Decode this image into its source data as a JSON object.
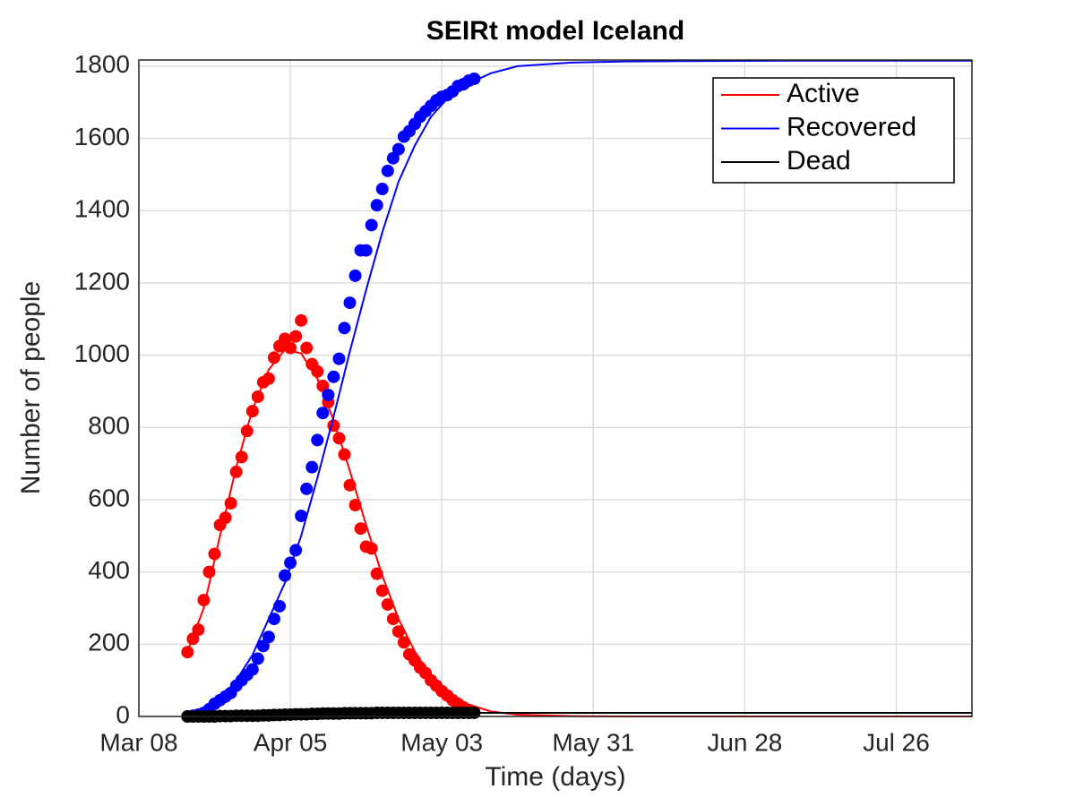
{
  "chart_data": {
    "type": "line",
    "title": "SEIRt model Iceland",
    "xlabel": "Time (days)",
    "ylabel": "Number of people",
    "xlim": [
      0,
      154
    ],
    "xticks": [
      {
        "value": 0,
        "label": "Mar 08"
      },
      {
        "value": 28,
        "label": "Apr 05"
      },
      {
        "value": 56,
        "label": "May 03"
      },
      {
        "value": 84,
        "label": "May 31"
      },
      {
        "value": 112,
        "label": "Jun 28"
      },
      {
        "value": 140,
        "label": "Jul 26"
      }
    ],
    "ylim": [
      0,
      1817
    ],
    "yticks": [
      0,
      200,
      400,
      600,
      800,
      1000,
      1200,
      1400,
      1600,
      1800
    ],
    "grid": true,
    "legend": "upper right",
    "observed_x": [
      9,
      10,
      11,
      12,
      13,
      14,
      15,
      16,
      17,
      18,
      19,
      20,
      21,
      22,
      23,
      24,
      25,
      26,
      27,
      28,
      29,
      30,
      31,
      32,
      33,
      34,
      35,
      36,
      37,
      38,
      39,
      40,
      41,
      42,
      43,
      44,
      45,
      46,
      47,
      48,
      49,
      50,
      51,
      52,
      53,
      54,
      55,
      56,
      57,
      58,
      59,
      60,
      61,
      62
    ],
    "series": [
      {
        "name": "Active",
        "color": "#ff0000",
        "x": [
          9,
          12,
          15,
          18,
          21,
          24,
          27,
          30,
          33,
          36,
          39,
          42,
          45,
          48,
          51,
          54,
          57,
          60,
          65,
          70,
          80,
          90,
          100,
          120,
          154
        ],
        "values": [
          180,
          300,
          500,
          690,
          850,
          960,
          1015,
          1005,
          935,
          820,
          680,
          530,
          390,
          270,
          180,
          110,
          65,
          38,
          14,
          5,
          1,
          0,
          0,
          0,
          0
        ],
        "observed": [
          178,
          215,
          240,
          322,
          400,
          450,
          530,
          550,
          590,
          677,
          718,
          790,
          845,
          885,
          925,
          935,
          993,
          1025,
          1045,
          1020,
          1052,
          1096,
          1020,
          975,
          955,
          915,
          870,
          805,
          770,
          725,
          640,
          585,
          520,
          470,
          465,
          395,
          348,
          310,
          270,
          235,
          205,
          172,
          155,
          135,
          120,
          100,
          85,
          70,
          58,
          45,
          35,
          25,
          18,
          12
        ]
      },
      {
        "name": "Recovered",
        "color": "#0000ff",
        "x": [
          9,
          12,
          15,
          18,
          21,
          24,
          27,
          30,
          33,
          36,
          39,
          42,
          45,
          48,
          51,
          54,
          57,
          60,
          65,
          70,
          80,
          90,
          100,
          120,
          154
        ],
        "values": [
          0,
          15,
          45,
          100,
          170,
          270,
          370,
          500,
          660,
          830,
          1010,
          1180,
          1340,
          1480,
          1580,
          1660,
          1710,
          1745,
          1780,
          1800,
          1810,
          1813,
          1814,
          1815,
          1815
        ],
        "observed": [
          0,
          2,
          5,
          10,
          20,
          35,
          45,
          55,
          65,
          85,
          100,
          115,
          130,
          160,
          195,
          220,
          270,
          305,
          390,
          425,
          460,
          555,
          630,
          690,
          765,
          840,
          890,
          940,
          990,
          1075,
          1145,
          1220,
          1290,
          1290,
          1360,
          1415,
          1460,
          1510,
          1545,
          1570,
          1605,
          1620,
          1640,
          1660,
          1675,
          1690,
          1705,
          1715,
          1720,
          1730,
          1745,
          1750,
          1760,
          1765
        ]
      },
      {
        "name": "Dead",
        "color": "#000000",
        "x": [
          9,
          12,
          15,
          18,
          21,
          24,
          27,
          30,
          33,
          36,
          39,
          42,
          45,
          48,
          51,
          54,
          57,
          60,
          65,
          70,
          80,
          90,
          100,
          120,
          154
        ],
        "values": [
          0,
          0.5,
          1,
          2,
          3,
          4,
          5,
          6,
          7,
          8,
          8.5,
          9,
          9.5,
          10,
          10,
          10,
          10,
          10,
          10,
          10,
          10,
          10,
          10,
          10,
          10
        ],
        "observed": [
          0,
          0,
          0,
          0,
          0,
          0,
          1,
          1,
          1,
          2,
          2,
          2,
          2,
          2,
          3,
          3,
          4,
          4,
          5,
          5,
          6,
          6,
          6,
          7,
          7,
          8,
          8,
          8,
          8,
          9,
          9,
          9,
          9,
          9,
          9,
          10,
          10,
          10,
          10,
          10,
          10,
          10,
          10,
          10,
          10,
          10,
          10,
          10,
          10,
          10,
          10,
          10,
          10,
          10
        ]
      }
    ]
  }
}
